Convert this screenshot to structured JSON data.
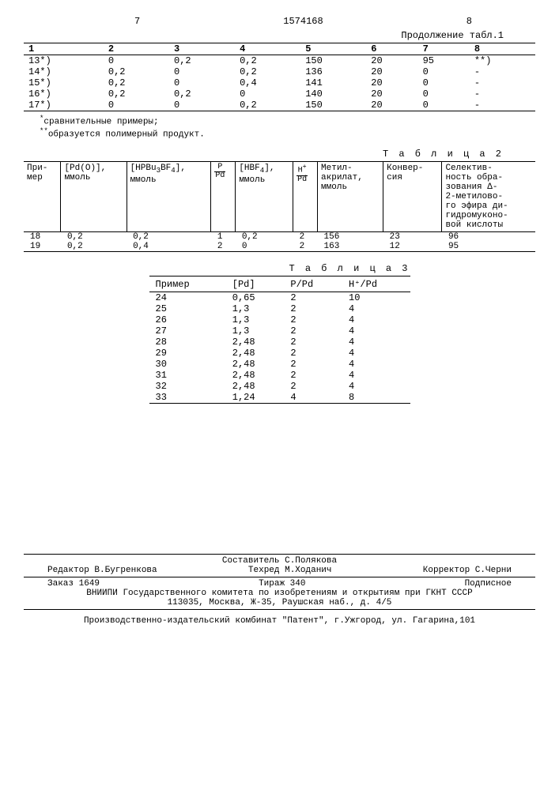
{
  "header": {
    "left_page": "7",
    "doc_number": "1574168",
    "right_page": "8",
    "continuation": "Продолжение табл.1"
  },
  "table1": {
    "columns": [
      "1",
      "2",
      "3",
      "4",
      "5",
      "6",
      "7",
      "8"
    ],
    "rows": [
      [
        "13*)",
        "0",
        "0,2",
        "0,2",
        "150",
        "20",
        "95",
        "**)"
      ],
      [
        "14*)",
        "0,2",
        "0",
        "0,2",
        "136",
        "20",
        "0",
        "-"
      ],
      [
        "15*)",
        "0,2",
        "0",
        "0,4",
        "141",
        "20",
        "0",
        "-"
      ],
      [
        "16*)",
        "0,2",
        "0,2",
        "0",
        "140",
        "20",
        "0",
        "-"
      ],
      [
        "17*)",
        "0",
        "0",
        "0,2",
        "150",
        "20",
        "0",
        "-"
      ]
    ],
    "footnote1": "сравнительные примеры;",
    "footnote2": "образуется полимерный продукт."
  },
  "table2": {
    "label": "Т а б л и ц а  2",
    "columns": [
      "При-\nмер",
      "[Pd(O)],\nммоль",
      "[HPBu₃BF₄],\nммоль",
      "P\nPd",
      "[HBF₄],\nммоль",
      "H⁺\nPd",
      "Метил-\nакрилат,\nммоль",
      "Конвер-\nсия",
      "Селектив-\nность обра-\nзования Δ-\n2-метилово-\nго эфира ди-\nгидромуконо-\nвой кислоты"
    ],
    "rows": [
      [
        "18",
        "0,2",
        "0,2",
        "1",
        "0,2",
        "2",
        "156",
        "23",
        "96"
      ],
      [
        "19",
        "0,2",
        "0,4",
        "2",
        "0",
        "2",
        "163",
        "12",
        "95"
      ]
    ]
  },
  "table3": {
    "label": "Т а б л и ц а 3",
    "columns": [
      "Пример",
      "[Pd]",
      "P/Pd",
      "H⁺/Pd"
    ],
    "rows": [
      [
        "24",
        "0,65",
        "2",
        "10"
      ],
      [
        "25",
        "1,3",
        "2",
        "4"
      ],
      [
        "26",
        "1,3",
        "2",
        "4"
      ],
      [
        "27",
        "1,3",
        "2",
        "4"
      ],
      [
        "28",
        "2,48",
        "2",
        "4"
      ],
      [
        "29",
        "2,48",
        "2",
        "4"
      ],
      [
        "30",
        "2,48",
        "2",
        "4"
      ],
      [
        "31",
        "2,48",
        "2",
        "4"
      ],
      [
        "32",
        "2,48",
        "2",
        "4"
      ],
      [
        "33",
        "1,24",
        "4",
        "8"
      ]
    ]
  },
  "colophon": {
    "compiler": "Составитель С.Полякова",
    "editor": "Редактор В.Бугренкова",
    "tehred": "Техред М.Ходанич",
    "corrector": "Корректор С.Черни",
    "order": "Заказ 1649",
    "tiraz": "Тираж 340",
    "podpisnoe": "Подписное",
    "org1": "ВНИИПИ Государственного комитета по изобретениям и открытиям при ГКНТ СССР",
    "org1addr": "113035, Москва, Ж-35, Раушская наб., д. 4/5",
    "org2": "Производственно-издательский комбинат \"Патент\", г.Ужгород, ул. Гагарина,101"
  }
}
